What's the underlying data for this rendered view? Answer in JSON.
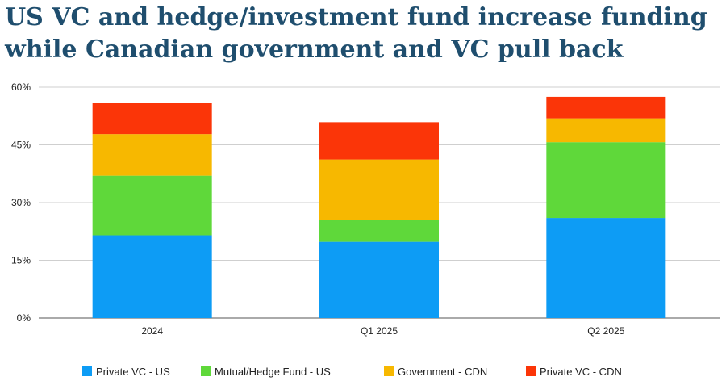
{
  "title": "US VC and hedge/investment fund increase funding while Canadian government and VC pull back",
  "chart_data": {
    "type": "bar",
    "stacked": true,
    "categories": [
      "2024",
      "Q1 2025",
      "Q2 2025"
    ],
    "yticks": [
      "0%",
      "15%",
      "30%",
      "45%",
      "60%"
    ],
    "ylim": [
      0,
      60
    ],
    "grid": true,
    "legend_position": "bottom",
    "series": [
      {
        "name": "Private VC - US",
        "color": "#0d9cf5",
        "values": [
          21.5,
          19.8,
          26.0
        ]
      },
      {
        "name": "Mutual/Hedge Fund - US",
        "color": "#5fd83a",
        "values": [
          15.5,
          5.7,
          19.7
        ]
      },
      {
        "name": "Government - CDN",
        "color": "#f7b800",
        "values": [
          10.8,
          15.7,
          6.2
        ]
      },
      {
        "name": "Private VC - CDN",
        "color": "#fb3508",
        "values": [
          8.2,
          9.7,
          5.6
        ]
      }
    ]
  }
}
